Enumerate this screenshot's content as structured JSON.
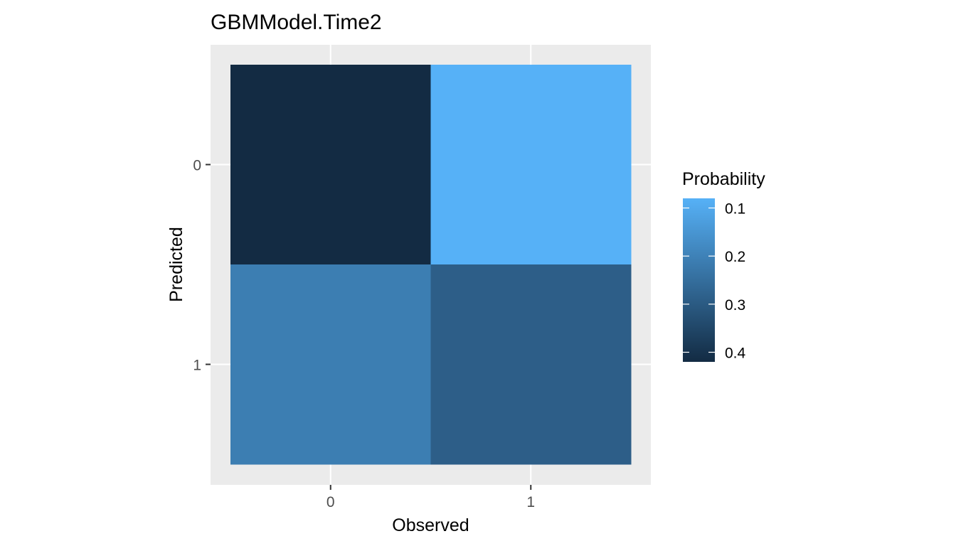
{
  "chart_data": {
    "type": "heatmap",
    "title": "GBMModel.Time2",
    "xlabel": "Observed",
    "ylabel": "Predicted",
    "x_categories": [
      "0",
      "1"
    ],
    "y_categories": [
      "0",
      "1"
    ],
    "cells": [
      {
        "observed": "0",
        "predicted": "0",
        "probability": 0.42
      },
      {
        "observed": "1",
        "predicted": "0",
        "probability": 0.08
      },
      {
        "observed": "0",
        "predicted": "1",
        "probability": 0.21
      },
      {
        "observed": "1",
        "predicted": "1",
        "probability": 0.29
      }
    ],
    "legend": {
      "title": "Probability",
      "position": "right",
      "ticks": [
        0.1,
        0.2,
        0.3,
        0.4
      ],
      "tick_labels": [
        "0.1",
        "0.2",
        "0.3",
        "0.4"
      ],
      "range": [
        0.08,
        0.42
      ],
      "reversed": true,
      "color_low": "#56B1F7",
      "color_high": "#132B43"
    },
    "grid": true,
    "panel_background": "#EBEBEB"
  }
}
